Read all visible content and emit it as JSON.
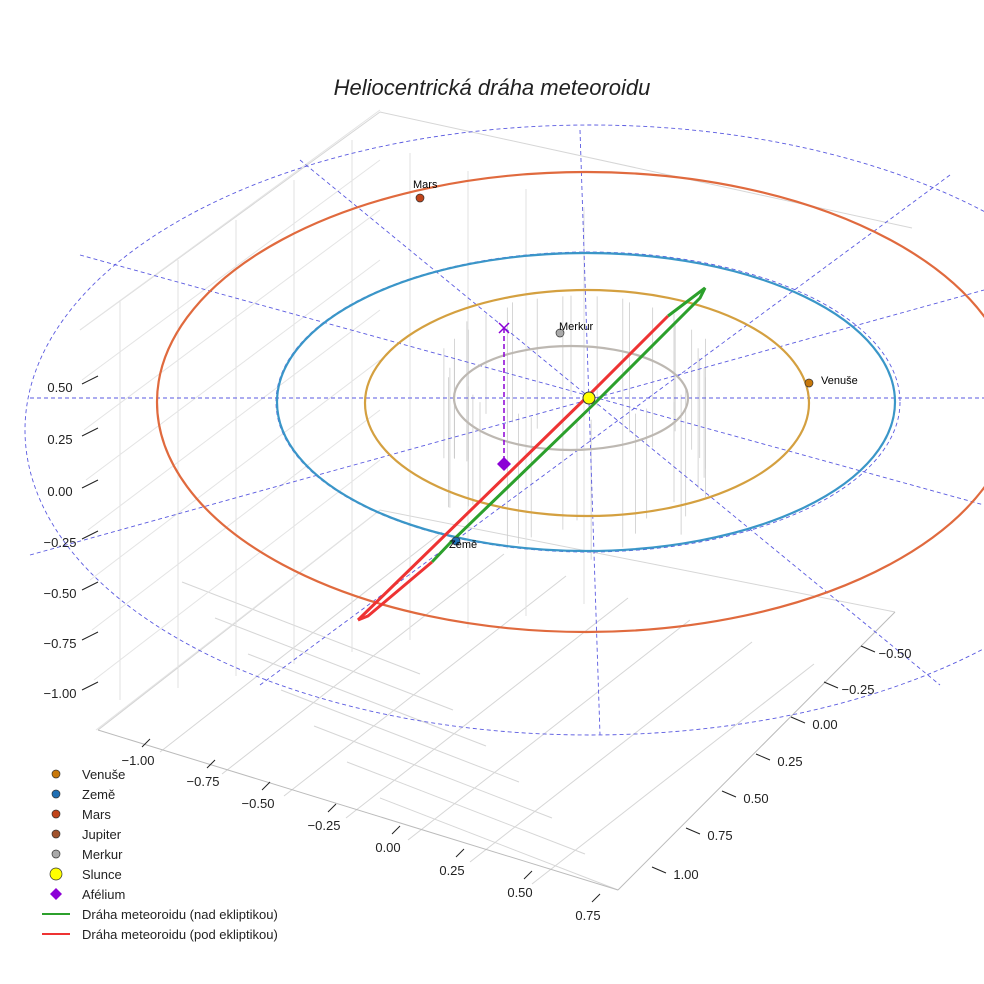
{
  "chart_data": {
    "type": "scatter",
    "projection": "3d",
    "title": "Heliocentrická dráha meteoroidu",
    "xlabel": "",
    "ylabel": "",
    "zlabel": "",
    "x_ticks": [
      "−1.00",
      "−0.75",
      "−0.50",
      "−0.25",
      "0.00",
      "0.25",
      "0.50",
      "0.75"
    ],
    "y_ticks": [
      "−0.50",
      "−0.25",
      "0.00",
      "0.25",
      "0.50",
      "0.75",
      "1.00"
    ],
    "z_ticks": [
      "0.50",
      "0.25",
      "0.00",
      "−0.25",
      "−0.50",
      "−0.75",
      "−1.00"
    ],
    "xlim": [
      -1.1,
      0.8
    ],
    "ylim": [
      -0.6,
      1.1
    ],
    "zlim": [
      -1.1,
      0.6
    ],
    "grid": true,
    "legend_position": "bottom-left",
    "planet_labels": [
      "Mars",
      "Merkur",
      "Venuše",
      "Země"
    ],
    "legend": [
      {
        "label": "Venuše",
        "marker": "circle",
        "color": "#c8780a"
      },
      {
        "label": "Země",
        "marker": "circle",
        "color": "#1f6fb4"
      },
      {
        "label": "Mars",
        "marker": "circle",
        "color": "#c0441a"
      },
      {
        "label": "Jupiter",
        "marker": "circle",
        "color": "#a0522d"
      },
      {
        "label": "Merkur",
        "marker": "circle",
        "color": "#a9a9a9"
      },
      {
        "label": "Slunce",
        "marker": "circle",
        "color": "#ffff00"
      },
      {
        "label": "Afélium",
        "marker": "diamond",
        "color": "#8b00d6"
      },
      {
        "label": "Dráha meteoroidu (nad ekliptikou)",
        "marker": "line",
        "color": "#2ca02c"
      },
      {
        "label": "Dráha meteoroidu (pod ekliptikou)",
        "marker": "line",
        "color": "#ee3333"
      }
    ],
    "orbit_colors": {
      "merkur": "#bdb8b2",
      "venuse": "#d4a040",
      "zeme": "#3a96c8",
      "mars": "#e06a3e",
      "reference": "#5a5ae0"
    }
  }
}
